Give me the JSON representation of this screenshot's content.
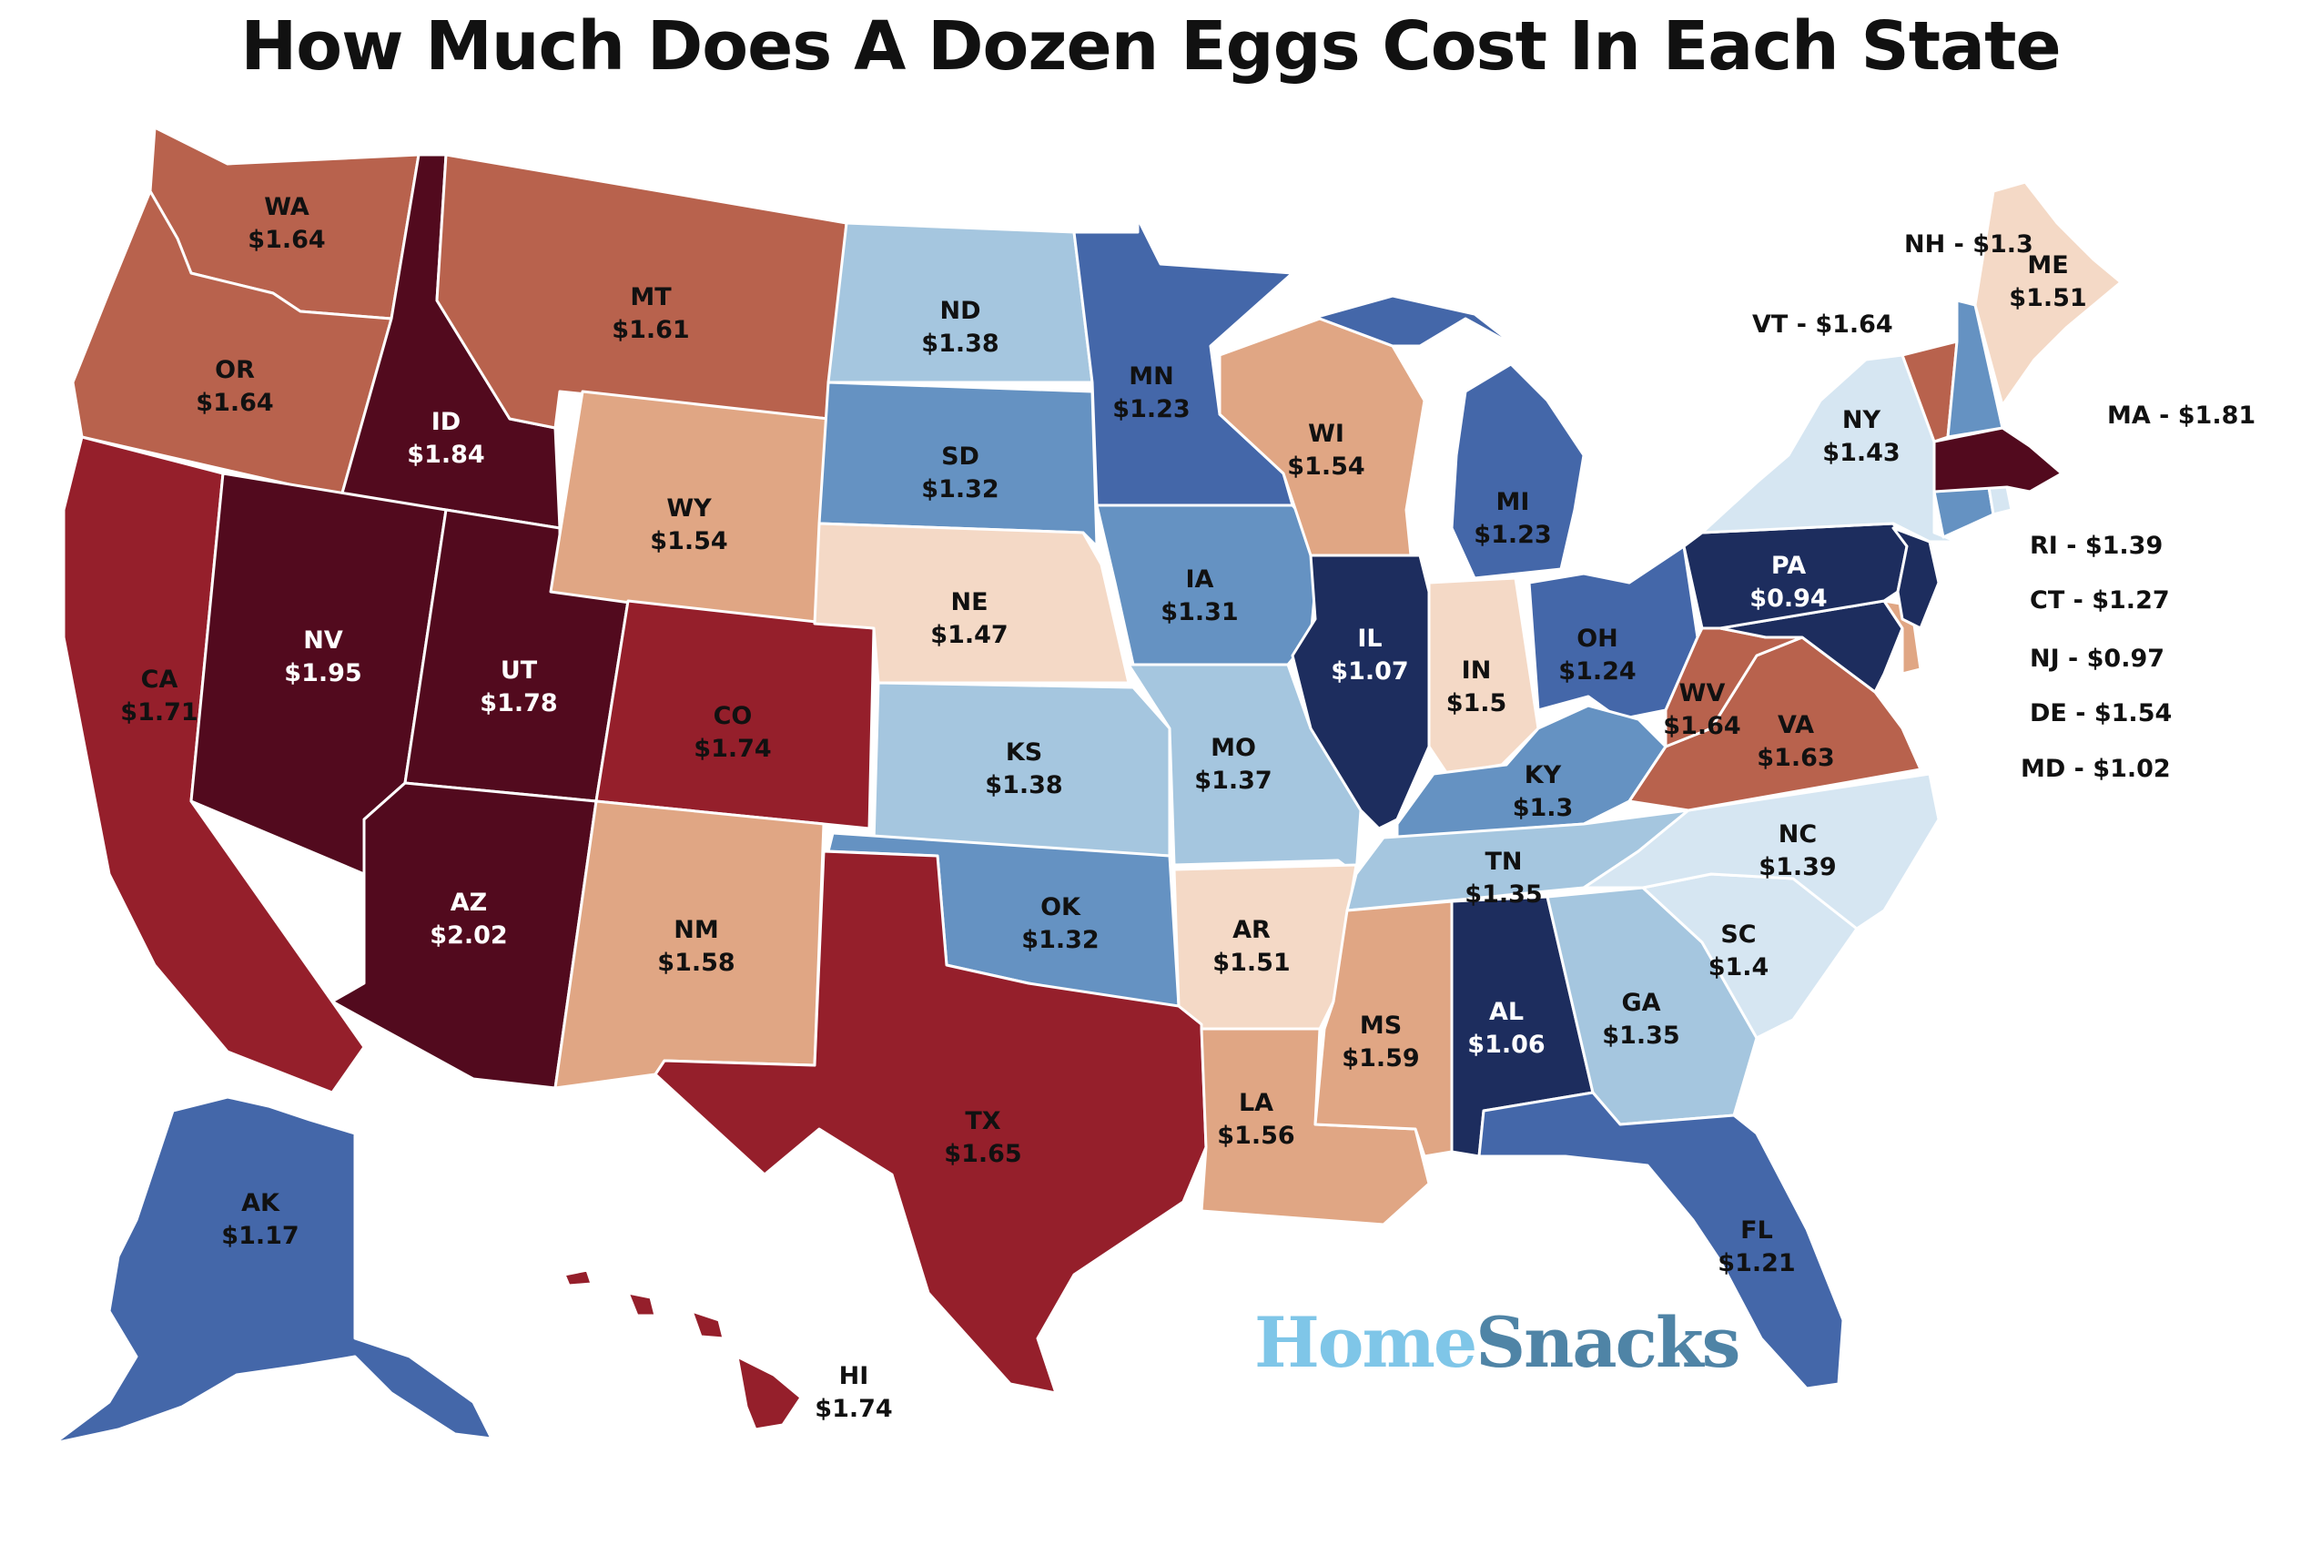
{
  "title": "How Much Does A Dozen Eggs Cost In Each State",
  "logo": {
    "part1": "Home",
    "part2": "Snacks"
  },
  "colors": {
    "darkest_red": "#520a1e",
    "red": "#951f2b",
    "dark_orange": "#b8624d",
    "tan": "#e0a684",
    "light_peach": "#f4d9c6",
    "pale_blue": "#d6e6f2",
    "light_blue": "#a5c6df",
    "mid_blue": "#6592c2",
    "blue": "#4467a9",
    "navy": "#1d2d5e"
  },
  "states": [
    {
      "abbr": "WA",
      "price": "$1.64",
      "color": "#b8624d",
      "text": "#111"
    },
    {
      "abbr": "OR",
      "price": "$1.64",
      "color": "#b8624d",
      "text": "#111"
    },
    {
      "abbr": "CA",
      "price": "$1.71",
      "color": "#951f2b",
      "text": "#111"
    },
    {
      "abbr": "ID",
      "price": "$1.84",
      "color": "#520a1e",
      "text": "#fff"
    },
    {
      "abbr": "NV",
      "price": "$1.95",
      "color": "#520a1e",
      "text": "#fff"
    },
    {
      "abbr": "UT",
      "price": "$1.78",
      "color": "#520a1e",
      "text": "#fff"
    },
    {
      "abbr": "AZ",
      "price": "$2.02",
      "color": "#520a1e",
      "text": "#fff"
    },
    {
      "abbr": "MT",
      "price": "$1.61",
      "color": "#b8624d",
      "text": "#111"
    },
    {
      "abbr": "WY",
      "price": "$1.54",
      "color": "#e0a684",
      "text": "#111"
    },
    {
      "abbr": "CO",
      "price": "$1.74",
      "color": "#951f2b",
      "text": "#111"
    },
    {
      "abbr": "NM",
      "price": "$1.58",
      "color": "#e0a684",
      "text": "#111"
    },
    {
      "abbr": "ND",
      "price": "$1.38",
      "color": "#a5c6df",
      "text": "#111"
    },
    {
      "abbr": "SD",
      "price": "$1.32",
      "color": "#6592c2",
      "text": "#111"
    },
    {
      "abbr": "NE",
      "price": "$1.47",
      "color": "#f4d9c6",
      "text": "#111"
    },
    {
      "abbr": "KS",
      "price": "$1.38",
      "color": "#a5c6df",
      "text": "#111"
    },
    {
      "abbr": "OK",
      "price": "$1.32",
      "color": "#6592c2",
      "text": "#111"
    },
    {
      "abbr": "TX",
      "price": "$1.65",
      "color": "#951f2b",
      "text": "#111"
    },
    {
      "abbr": "MN",
      "price": "$1.23",
      "color": "#4467a9",
      "text": "#111"
    },
    {
      "abbr": "IA",
      "price": "$1.31",
      "color": "#6592c2",
      "text": "#111"
    },
    {
      "abbr": "MO",
      "price": "$1.37",
      "color": "#a5c6df",
      "text": "#111"
    },
    {
      "abbr": "AR",
      "price": "$1.51",
      "color": "#f4d9c6",
      "text": "#111"
    },
    {
      "abbr": "LA",
      "price": "$1.56",
      "color": "#e0a684",
      "text": "#111"
    },
    {
      "abbr": "WI",
      "price": "$1.54",
      "color": "#e0a684",
      "text": "#111"
    },
    {
      "abbr": "IL",
      "price": "$1.07",
      "color": "#1d2d5e",
      "text": "#fff"
    },
    {
      "abbr": "MI",
      "price": "$1.23",
      "color": "#4467a9",
      "text": "#111"
    },
    {
      "abbr": "IN",
      "price": "$1.5",
      "color": "#f4d9c6",
      "text": "#111"
    },
    {
      "abbr": "OH",
      "price": "$1.24",
      "color": "#4467a9",
      "text": "#111"
    },
    {
      "abbr": "KY",
      "price": "$1.3",
      "color": "#6592c2",
      "text": "#111"
    },
    {
      "abbr": "TN",
      "price": "$1.35",
      "color": "#a5c6df",
      "text": "#111"
    },
    {
      "abbr": "MS",
      "price": "$1.59",
      "color": "#e0a684",
      "text": "#111"
    },
    {
      "abbr": "AL",
      "price": "$1.06",
      "color": "#1d2d5e",
      "text": "#fff"
    },
    {
      "abbr": "GA",
      "price": "$1.35",
      "color": "#a5c6df",
      "text": "#111"
    },
    {
      "abbr": "FL",
      "price": "$1.21",
      "color": "#4467a9",
      "text": "#111"
    },
    {
      "abbr": "SC",
      "price": "$1.4",
      "color": "#d6e6f2",
      "text": "#111"
    },
    {
      "abbr": "NC",
      "price": "$1.39",
      "color": "#d6e6f2",
      "text": "#111"
    },
    {
      "abbr": "VA",
      "price": "$1.63",
      "color": "#b8624d",
      "text": "#111"
    },
    {
      "abbr": "WV",
      "price": "$1.64",
      "color": "#b8624d",
      "text": "#111"
    },
    {
      "abbr": "PA",
      "price": "$0.94",
      "color": "#1d2d5e",
      "text": "#fff"
    },
    {
      "abbr": "NY",
      "price": "$1.43",
      "color": "#d6e6f2",
      "text": "#111"
    },
    {
      "abbr": "ME",
      "price": "$1.51",
      "color": "#f4d9c6",
      "text": "#111"
    },
    {
      "abbr": "AK",
      "price": "$1.17",
      "color": "#4467a9",
      "text": "#111"
    },
    {
      "abbr": "HI",
      "price": "$1.74",
      "color": "#951f2b",
      "text": "#111"
    }
  ],
  "small_states": [
    {
      "abbr": "NH",
      "label": "NH - $1.3",
      "color": "#6592c2"
    },
    {
      "abbr": "VT",
      "label": "VT - $1.64",
      "color": "#b8624d"
    },
    {
      "abbr": "MA",
      "label": "MA - $1.81",
      "color": "#520a1e"
    },
    {
      "abbr": "RI",
      "label": "RI - $1.39",
      "color": "#d6e6f2"
    },
    {
      "abbr": "CT",
      "label": "CT - $1.27",
      "color": "#6592c2"
    },
    {
      "abbr": "NJ",
      "label": "NJ - $0.97",
      "color": "#1d2d5e"
    },
    {
      "abbr": "DE",
      "label": "DE - $1.54",
      "color": "#e0a684"
    },
    {
      "abbr": "MD",
      "label": "MD - $1.02",
      "color": "#1d2d5e"
    }
  ]
}
